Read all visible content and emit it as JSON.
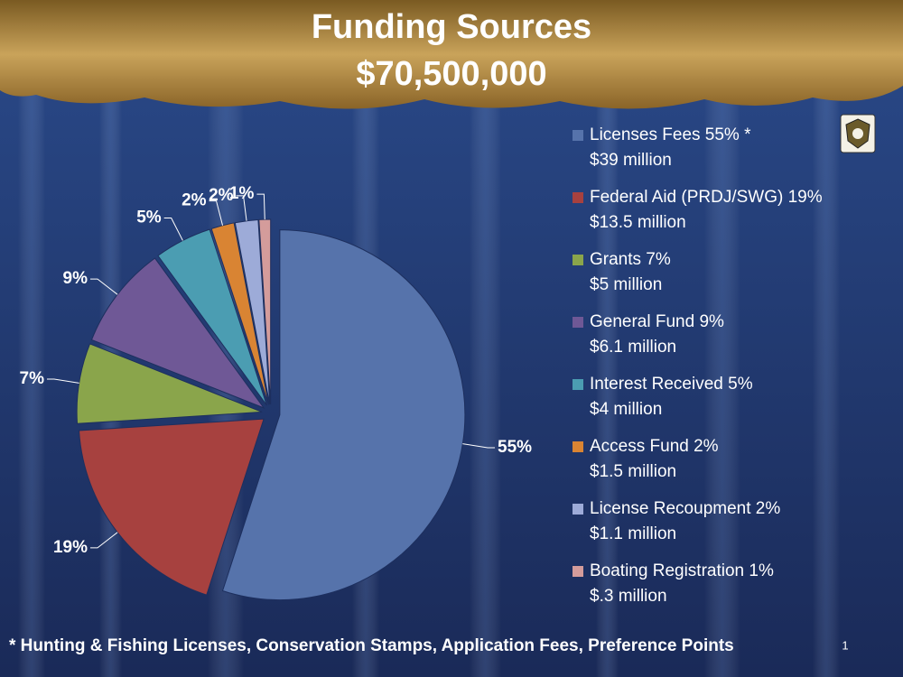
{
  "chart_data": {
    "type": "pie",
    "title": "Funding Sources",
    "subtitle": "$70,500,000",
    "categories": [
      "Licenses Fees 55% *",
      "Federal Aid (PRDJ/SWG) 19%",
      "Grants 7%",
      "General Fund 9%",
      "Interest Received 5%",
      "Access Fund 2%",
      "License Recoupment 2%",
      "Boating Registration 1%"
    ],
    "legend_notes": [
      "$39 million",
      "$13.5 million",
      "$5 million",
      "$6.1 million",
      "$4 million",
      "$1.5 million",
      "$1.1 million",
      "$.3 million"
    ],
    "values": [
      55,
      19,
      7,
      9,
      5,
      2,
      2,
      1
    ],
    "value_labels": [
      "55%",
      "19%",
      "7%",
      "9%",
      "5%",
      "2%",
      "2%",
      "1%"
    ],
    "colors": [
      "#5673ab",
      "#a7413f",
      "#8aa54b",
      "#6f5896",
      "#4b9db2",
      "#d98433",
      "#9dabd8",
      "#d49c9b"
    ],
    "legend": "right",
    "footnote": "* Hunting & Fishing Licenses, Conservation Stamps, Application Fees, Preference Points",
    "page_number": "1"
  }
}
